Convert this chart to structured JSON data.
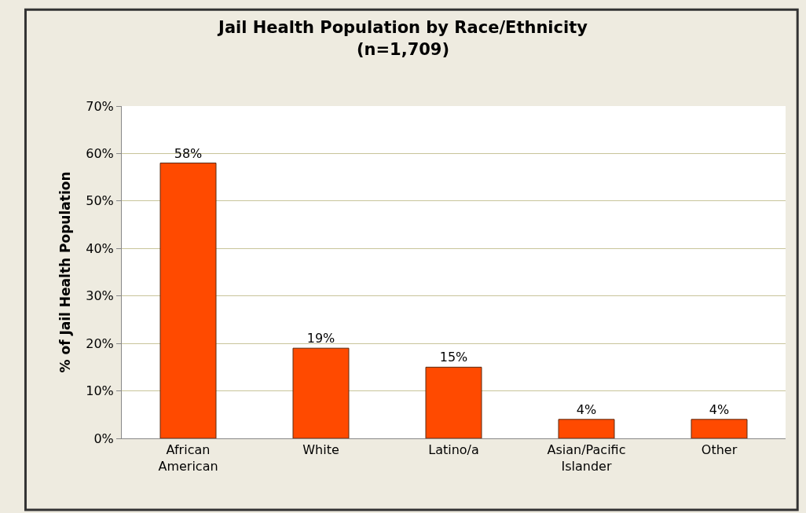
{
  "chart_data": {
    "type": "bar",
    "title": "Jail Health Population by Race/Ethnicity",
    "subtitle": "(n=1,709)",
    "ylabel": "% of Jail Health Population",
    "categories": [
      "African\nAmerican",
      "White",
      "Latino/a",
      "Asian/Pacific\nIslander",
      "Other"
    ],
    "values": [
      58,
      19,
      15,
      4,
      4
    ],
    "value_labels": [
      "58%",
      "19%",
      "15%",
      "4%",
      "4%"
    ],
    "color": "#ff4a00",
    "ylim": [
      0,
      70
    ],
    "yticks": [
      {
        "value": 0,
        "label": "0%"
      },
      {
        "value": 10,
        "label": "10%"
      },
      {
        "value": 20,
        "label": "20%"
      },
      {
        "value": 30,
        "label": "30%"
      },
      {
        "value": 40,
        "label": "40%"
      },
      {
        "value": 50,
        "label": "50%"
      },
      {
        "value": 60,
        "label": "60%"
      },
      {
        "value": 70,
        "label": "70%"
      }
    ],
    "grid": "y",
    "legend": false
  }
}
